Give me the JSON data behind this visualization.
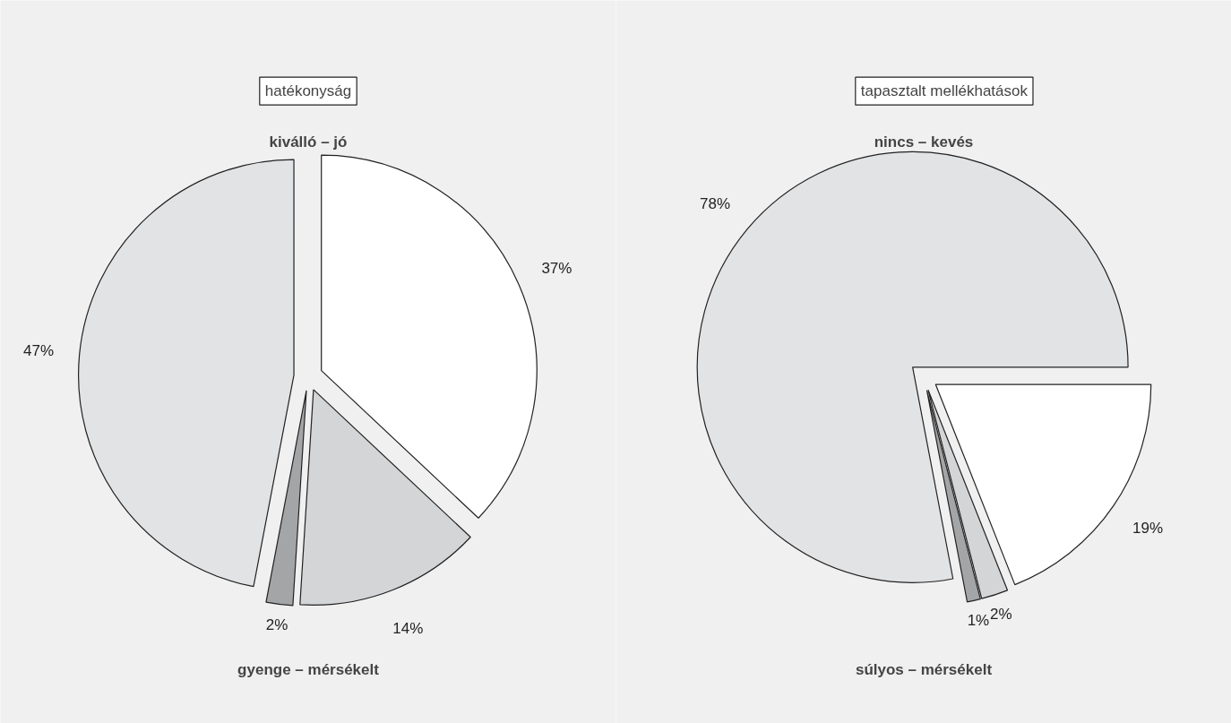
{
  "chart_data": [
    {
      "type": "pie",
      "title": "hatékonyság",
      "annotations": [
        "kiválló – jó",
        "gyenge – mérsékelt"
      ],
      "categories": [
        null,
        null,
        null,
        null
      ],
      "values": [
        37,
        14,
        2,
        47
      ],
      "value_labels": [
        "37%",
        "14%",
        "2%",
        "47%"
      ],
      "colors": [
        "#ffffff",
        "#d4d5d7",
        "#a4a5a7",
        "#e2e3e5"
      ]
    },
    {
      "type": "pie",
      "title": "tapasztalt mellékhatások",
      "annotations": [
        "nincs – kevés",
        "súlyos – mérsékelt"
      ],
      "categories": [
        null,
        null,
        null,
        null
      ],
      "values": [
        19,
        2,
        1,
        78
      ],
      "value_labels": [
        "19%",
        "2%",
        "1%",
        "78%"
      ],
      "colors": [
        "#ffffff",
        "#d4d5d7",
        "#a4a5a7",
        "#e2e3e5"
      ]
    }
  ]
}
